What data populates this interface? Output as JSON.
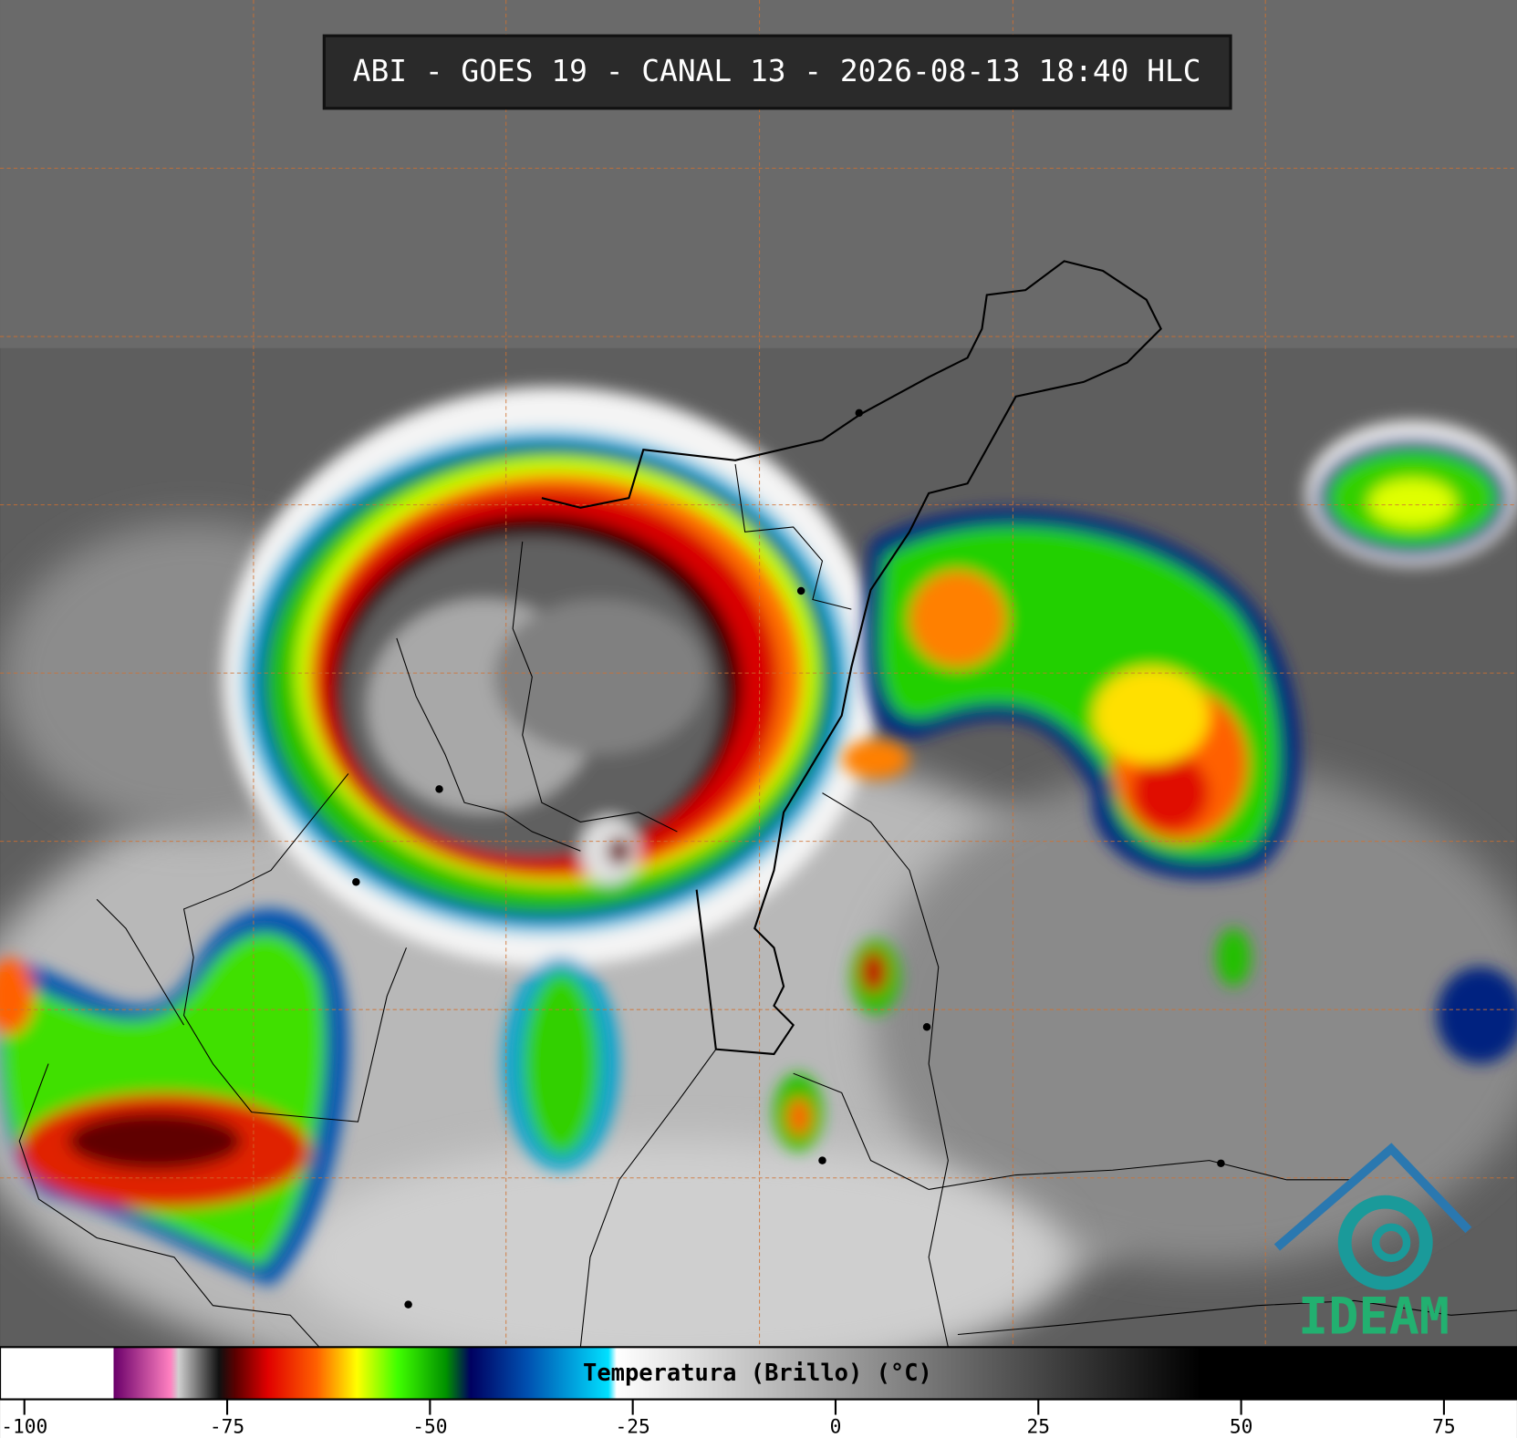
{
  "header": {
    "title": "ABI - GOES 19 - CANAL 13 - 2026-08-13 18:40 HLC"
  },
  "colorbar": {
    "label": "Temperatura (Brillo) (°C)",
    "lim": [
      -103,
      84
    ],
    "ticks": [
      -100,
      -75,
      -50,
      -25,
      0,
      25,
      50,
      75
    ],
    "stops": [
      {
        "value": -103,
        "color": "#ffffff"
      },
      {
        "value": -89,
        "color": "#ffffff"
      },
      {
        "value": -89,
        "color": "#6a006a"
      },
      {
        "value": -82,
        "color": "#ff80c0"
      },
      {
        "value": -81,
        "color": "#d0d0d0"
      },
      {
        "value": -76,
        "color": "#101010"
      },
      {
        "value": -74,
        "color": "#5a0000"
      },
      {
        "value": -70,
        "color": "#e00000"
      },
      {
        "value": -64,
        "color": "#ff6000"
      },
      {
        "value": -59,
        "color": "#ffff00"
      },
      {
        "value": -54,
        "color": "#40ff00"
      },
      {
        "value": -48,
        "color": "#009000"
      },
      {
        "value": -45,
        "color": "#000060"
      },
      {
        "value": -38,
        "color": "#0050b0"
      },
      {
        "value": -28,
        "color": "#00e0ff"
      },
      {
        "value": -27,
        "color": "#ffffff"
      },
      {
        "value": 45,
        "color": "#000000"
      },
      {
        "value": 84,
        "color": "#000000"
      }
    ]
  },
  "logo": {
    "text": "IDEAM"
  }
}
